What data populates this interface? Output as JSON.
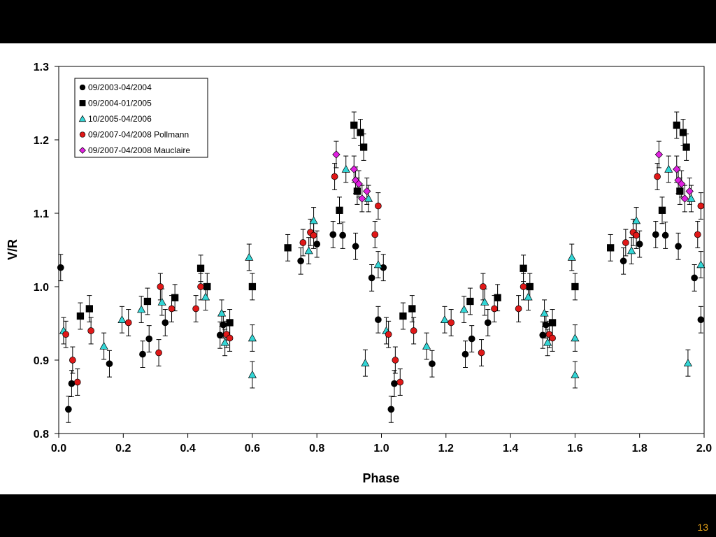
{
  "slide": {
    "page_number": "13",
    "page_number_color": "#e8a317"
  },
  "chart_data": {
    "type": "scatter",
    "title": "",
    "xlabel": "Phase",
    "ylabel": "V/R",
    "xlim": [
      0.0,
      2.0
    ],
    "ylim": [
      0.8,
      1.3
    ],
    "x_ticks": [
      "0.0",
      "0.2",
      "0.4",
      "0.6",
      "0.8",
      "1.0",
      "1.2",
      "1.4",
      "1.6",
      "1.8",
      "2.0"
    ],
    "y_ticks": [
      "0.8",
      "0.9",
      "1.0",
      "1.1",
      "1.2",
      "1.3"
    ],
    "grid": false,
    "legend_position": "top-left",
    "error_bar": 0.018,
    "series": [
      {
        "name": "09/2003-04/2004",
        "marker": "circle",
        "color": "#000000",
        "points": [
          [
            0.006,
            1.026
          ],
          [
            0.03,
            0.833
          ],
          [
            0.04,
            0.868
          ],
          [
            0.157,
            0.895
          ],
          [
            0.26,
            0.908
          ],
          [
            0.28,
            0.929
          ],
          [
            0.33,
            0.951
          ],
          [
            0.5,
            0.934
          ],
          [
            0.51,
            0.948
          ],
          [
            0.75,
            1.035
          ],
          [
            0.8,
            1.058
          ],
          [
            0.85,
            1.071
          ],
          [
            0.88,
            1.07
          ],
          [
            0.92,
            1.055
          ],
          [
            0.97,
            1.012
          ],
          [
            0.99,
            0.955
          ],
          [
            1.006,
            1.026
          ],
          [
            1.03,
            0.833
          ],
          [
            1.04,
            0.868
          ],
          [
            1.157,
            0.895
          ],
          [
            1.26,
            0.908
          ],
          [
            1.28,
            0.929
          ],
          [
            1.33,
            0.951
          ],
          [
            1.5,
            0.934
          ],
          [
            1.51,
            0.948
          ],
          [
            1.75,
            1.035
          ],
          [
            1.8,
            1.058
          ],
          [
            1.85,
            1.071
          ],
          [
            1.88,
            1.07
          ],
          [
            1.92,
            1.055
          ],
          [
            1.97,
            1.012
          ],
          [
            1.99,
            0.955
          ]
        ]
      },
      {
        "name": "09/2004-01/2005",
        "marker": "square",
        "color": "#000000",
        "points": [
          [
            0.067,
            0.96
          ],
          [
            0.095,
            0.97
          ],
          [
            0.275,
            0.98
          ],
          [
            0.36,
            0.985
          ],
          [
            0.44,
            1.025
          ],
          [
            0.46,
            1.0
          ],
          [
            0.53,
            0.951
          ],
          [
            0.6,
            1.0
          ],
          [
            0.71,
            1.053
          ],
          [
            0.87,
            1.104
          ],
          [
            0.915,
            1.22
          ],
          [
            0.925,
            1.13
          ],
          [
            0.935,
            1.21
          ],
          [
            0.945,
            1.19
          ],
          [
            1.067,
            0.96
          ],
          [
            1.095,
            0.97
          ],
          [
            1.275,
            0.98
          ],
          [
            1.36,
            0.985
          ],
          [
            1.44,
            1.025
          ],
          [
            1.46,
            1.0
          ],
          [
            1.53,
            0.951
          ],
          [
            1.6,
            1.0
          ],
          [
            1.71,
            1.053
          ],
          [
            1.87,
            1.104
          ],
          [
            1.915,
            1.22
          ],
          [
            1.925,
            1.13
          ],
          [
            1.935,
            1.21
          ],
          [
            1.945,
            1.19
          ]
        ]
      },
      {
        "name": "10/2005-04/2006",
        "marker": "triangle",
        "color": "#33d6d6",
        "points": [
          [
            0.015,
            0.94
          ],
          [
            0.14,
            0.919
          ],
          [
            0.196,
            0.955
          ],
          [
            0.256,
            0.969
          ],
          [
            0.32,
            0.979
          ],
          [
            0.455,
            0.986
          ],
          [
            0.505,
            0.964
          ],
          [
            0.515,
            0.924
          ],
          [
            0.59,
            1.04
          ],
          [
            0.6,
            0.93
          ],
          [
            0.6,
            0.88
          ],
          [
            0.775,
            1.049
          ],
          [
            0.79,
            1.09
          ],
          [
            0.89,
            1.16
          ],
          [
            0.95,
            0.896
          ],
          [
            0.96,
            1.12
          ],
          [
            0.99,
            1.03
          ],
          [
            1.015,
            0.94
          ],
          [
            1.14,
            0.919
          ],
          [
            1.196,
            0.955
          ],
          [
            1.256,
            0.969
          ],
          [
            1.32,
            0.979
          ],
          [
            1.455,
            0.986
          ],
          [
            1.505,
            0.964
          ],
          [
            1.515,
            0.924
          ],
          [
            1.59,
            1.04
          ],
          [
            1.6,
            0.93
          ],
          [
            1.6,
            0.88
          ],
          [
            1.775,
            1.049
          ],
          [
            1.79,
            1.09
          ],
          [
            1.89,
            1.16
          ],
          [
            1.95,
            0.896
          ],
          [
            1.96,
            1.12
          ],
          [
            1.99,
            1.03
          ]
        ]
      },
      {
        "name": "09/2007-04/2008 Pollmann",
        "marker": "circle",
        "color": "#e01818",
        "points": [
          [
            0.022,
            0.935
          ],
          [
            0.043,
            0.9
          ],
          [
            0.058,
            0.87
          ],
          [
            0.1,
            0.94
          ],
          [
            0.216,
            0.951
          ],
          [
            0.31,
            0.91
          ],
          [
            0.315,
            1.0
          ],
          [
            0.35,
            0.97
          ],
          [
            0.425,
            0.97
          ],
          [
            0.44,
            1.0
          ],
          [
            0.52,
            0.935
          ],
          [
            0.53,
            0.93
          ],
          [
            0.757,
            1.06
          ],
          [
            0.78,
            1.074
          ],
          [
            0.79,
            1.07
          ],
          [
            0.855,
            1.15
          ],
          [
            0.98,
            1.071
          ],
          [
            0.99,
            1.11
          ],
          [
            1.022,
            0.935
          ],
          [
            1.043,
            0.9
          ],
          [
            1.058,
            0.87
          ],
          [
            1.1,
            0.94
          ],
          [
            1.216,
            0.951
          ],
          [
            1.31,
            0.91
          ],
          [
            1.315,
            1.0
          ],
          [
            1.35,
            0.97
          ],
          [
            1.425,
            0.97
          ],
          [
            1.44,
            1.0
          ],
          [
            1.52,
            0.935
          ],
          [
            1.53,
            0.93
          ],
          [
            1.757,
            1.06
          ],
          [
            1.78,
            1.074
          ],
          [
            1.79,
            1.07
          ],
          [
            1.855,
            1.15
          ],
          [
            1.98,
            1.071
          ],
          [
            1.99,
            1.11
          ]
        ]
      },
      {
        "name": "09/2007-04/2008 Mauclaire",
        "marker": "diamond",
        "color": "#e020e0",
        "points": [
          [
            0.86,
            1.18
          ],
          [
            0.915,
            1.16
          ],
          [
            0.92,
            1.145
          ],
          [
            0.93,
            1.14
          ],
          [
            0.94,
            1.12
          ],
          [
            0.955,
            1.13
          ],
          [
            1.86,
            1.18
          ],
          [
            1.915,
            1.16
          ],
          [
            1.92,
            1.145
          ],
          [
            1.93,
            1.14
          ],
          [
            1.94,
            1.12
          ],
          [
            1.955,
            1.13
          ]
        ]
      }
    ]
  }
}
